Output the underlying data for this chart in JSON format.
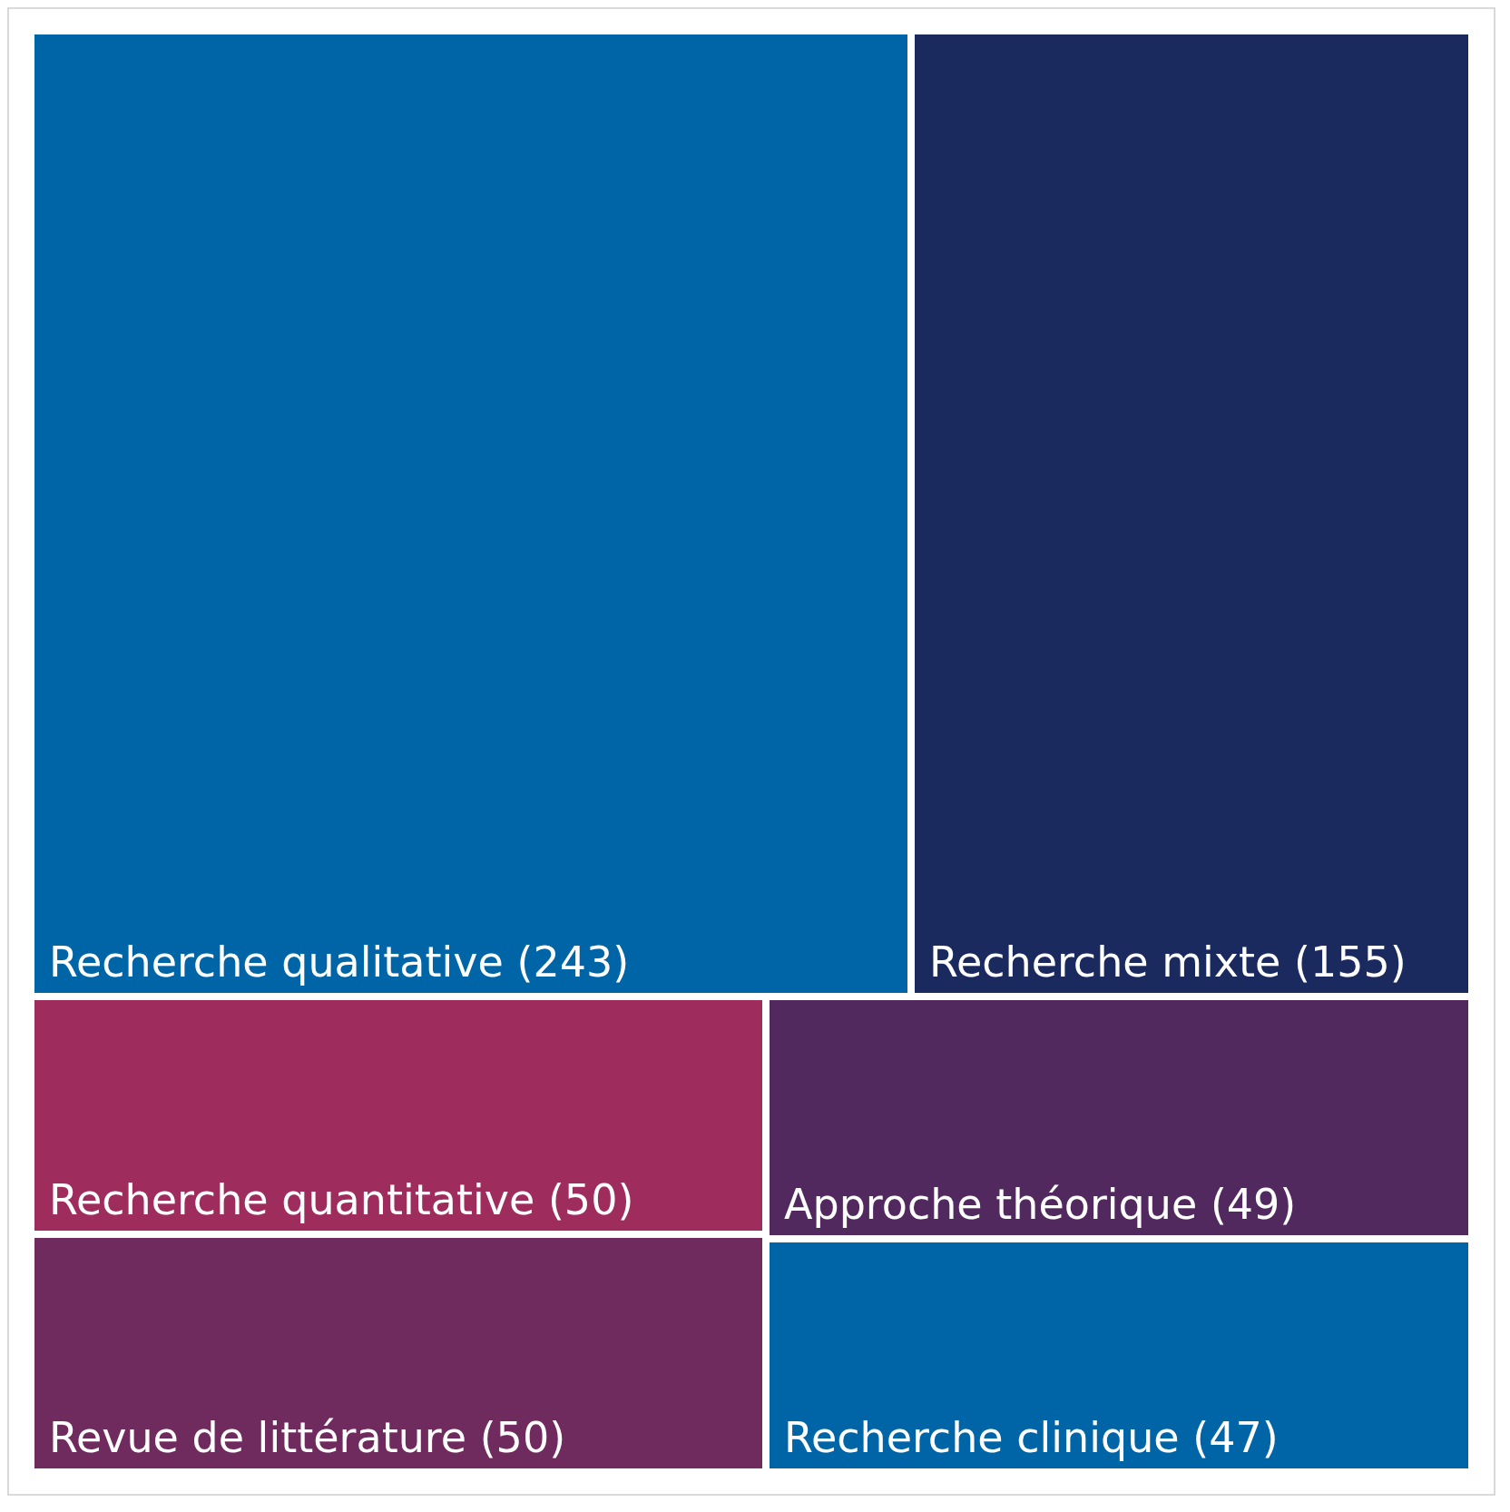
{
  "chart_data": {
    "type": "other",
    "categories": [
      "Recherche qualitative",
      "Recherche mixte",
      "Recherche quantitative",
      "Revue de littérature",
      "Approche théorique",
      "Recherche clinique"
    ],
    "values": [
      243,
      155,
      50,
      50,
      49,
      47
    ],
    "colors": [
      "#0065a6",
      "#1a2a5f",
      "#9e2d5e",
      "#6f2a5e",
      "#51295f",
      "#0065a6"
    ],
    "value_labels": [
      "(243)",
      "(155)",
      "(50)",
      "(50)",
      "(49)",
      "(47)"
    ]
  }
}
